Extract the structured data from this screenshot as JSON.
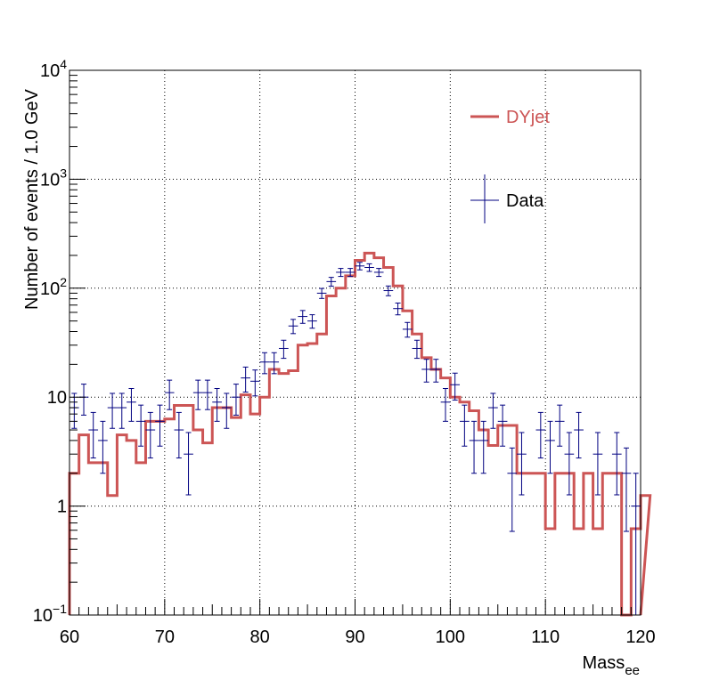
{
  "chart_data": {
    "type": "histogram",
    "xlabel_main": "Mass",
    "xlabel_sub": "ee",
    "ylabel": "Number of events / 1.0 GeV",
    "xlim": [
      60,
      120
    ],
    "ylim": [
      0.1,
      10000
    ],
    "yscale": "log",
    "grid": true,
    "x_ticks": [
      "60",
      "70",
      "80",
      "90",
      "100",
      "110",
      "120"
    ],
    "y_ticks": [
      {
        "base": "10",
        "exp": "−1"
      },
      {
        "base": "1",
        "exp": ""
      },
      {
        "base": "10",
        "exp": ""
      },
      {
        "base": "10",
        "exp": "2"
      },
      {
        "base": "10",
        "exp": "3"
      },
      {
        "base": "10",
        "exp": "4"
      }
    ],
    "legend_position": "top-right",
    "colors": {
      "mc": "#cc5555",
      "data": "#000080"
    },
    "series": [
      {
        "name": "DYjet",
        "style": "step",
        "bin_edges_start": 60,
        "bin_width": 1.0,
        "values": [
          2,
          4.5,
          2.5,
          2.5,
          1.25,
          4.5,
          4,
          2.5,
          6,
          6,
          6.3,
          8.4,
          8.4,
          5,
          3.8,
          8,
          8,
          6.5,
          10.5,
          7,
          10,
          18,
          16.5,
          17.5,
          30,
          31,
          38,
          85,
          100,
          130,
          180,
          210,
          190,
          155,
          105,
          62,
          38,
          23,
          18,
          15,
          10,
          9,
          7.5,
          5,
          3.6,
          5.5,
          5.5,
          2,
          2,
          2,
          0.62,
          2,
          2,
          0.62,
          2,
          0.62,
          2,
          2,
          0.09,
          0.62,
          1.25
        ]
      },
      {
        "name": "Data",
        "style": "errorbar",
        "x": [
          60.5,
          61.5,
          62.5,
          63.5,
          64.5,
          65.5,
          66.5,
          67.5,
          68.5,
          69.5,
          70.5,
          71.5,
          72.5,
          73.5,
          74.5,
          75.5,
          76.5,
          77.5,
          78.5,
          79.5,
          80.5,
          81.5,
          82.5,
          83.5,
          84.5,
          85.5,
          86.5,
          87.5,
          88.5,
          89.5,
          90.5,
          91.5,
          92.5,
          93.5,
          94.5,
          95.5,
          96.5,
          97.5,
          98.5,
          99.5,
          100.5,
          101.5,
          102.5,
          103.5,
          104.5,
          105.5,
          106.5,
          107.5,
          109.5,
          110.5,
          111.5,
          112.5,
          113.5,
          115.5,
          117.5,
          118.5,
          119.5
        ],
        "y": [
          8,
          10,
          5,
          4,
          8,
          8,
          9,
          6,
          5,
          6,
          11,
          5,
          3,
          11,
          11,
          9,
          8,
          10,
          15,
          14,
          21,
          21,
          28,
          45,
          55,
          50,
          90,
          115,
          140,
          140,
          160,
          155,
          140,
          95,
          65,
          42,
          28,
          18,
          18,
          9,
          13,
          6,
          4,
          4,
          8,
          6,
          2,
          3,
          5,
          4,
          6,
          3,
          5,
          3,
          3,
          2,
          1
        ]
      }
    ]
  }
}
